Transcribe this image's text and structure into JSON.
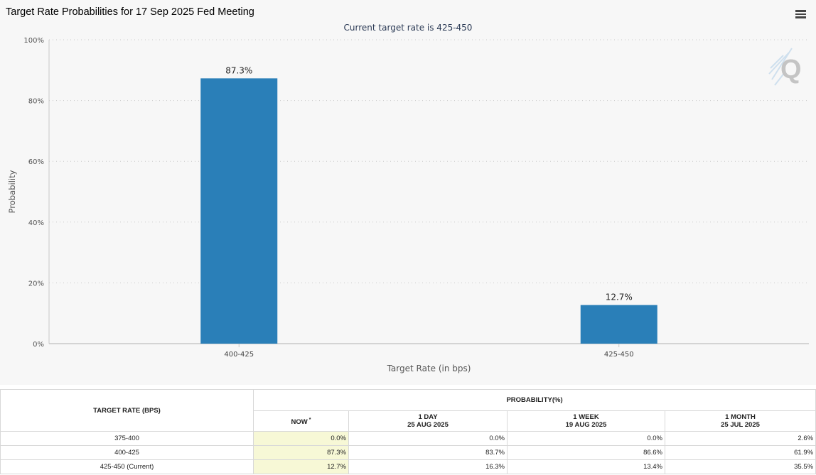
{
  "header": {
    "title": "Target Rate Probabilities for 17 Sep 2025 Fed Meeting",
    "menu_icon": "hamburger-menu-icon"
  },
  "chart_data": {
    "type": "bar",
    "title": "Target Rate Probabilities for 17 Sep 2025 Fed Meeting",
    "subtitle": "Current target rate is 425-450",
    "categories": [
      "400-425",
      "425-450"
    ],
    "values": [
      87.3,
      12.7
    ],
    "value_labels": [
      "87.3%",
      "12.7%"
    ],
    "xlabel": "Target Rate (in bps)",
    "ylabel": "Probability",
    "ylim": [
      0,
      100
    ],
    "yticks": [
      0,
      20,
      40,
      60,
      80,
      100
    ],
    "ytick_labels": [
      "0%",
      "20%",
      "40%",
      "60%",
      "80%",
      "100%"
    ],
    "grid": true,
    "bar_color": "#2a7fb8"
  },
  "table": {
    "rate_header": "TARGET RATE (BPS)",
    "prob_header": "PROBABILITY(%)",
    "columns": [
      {
        "label": "NOW",
        "sub": ""
      },
      {
        "label": "1 DAY",
        "sub": "25 AUG 2025"
      },
      {
        "label": "1 WEEK",
        "sub": "19 AUG 2025"
      },
      {
        "label": "1 MONTH",
        "sub": "25 JUL 2025"
      }
    ],
    "now_marker": "*",
    "rows": [
      {
        "rate": "375-400",
        "values": [
          "0.0%",
          "0.0%",
          "0.0%",
          "2.6%"
        ]
      },
      {
        "rate": "400-425",
        "values": [
          "87.3%",
          "83.7%",
          "86.6%",
          "61.9%"
        ]
      },
      {
        "rate": "425-450 (Current)",
        "values": [
          "12.7%",
          "16.3%",
          "13.4%",
          "35.5%"
        ]
      }
    ]
  }
}
